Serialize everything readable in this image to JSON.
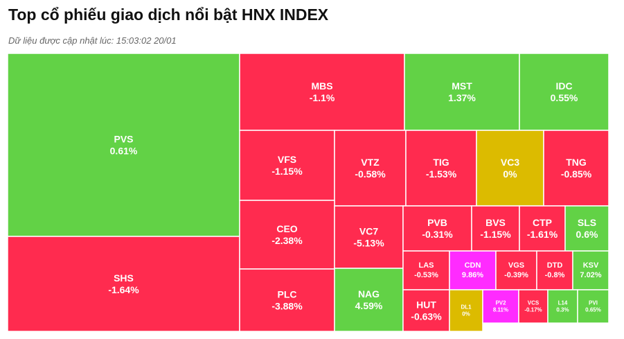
{
  "header": {
    "title": "Top cổ phiếu giao dịch nổi bật HNX INDEX",
    "updated": "Dữ liệu được cập nhật lúc: 15:03:02 20/01"
  },
  "colors": {
    "up": "#62d246",
    "down": "#ff2b4f",
    "flat": "#dcbb00",
    "ceiling": "#ff2bff",
    "border": "#ffffff",
    "label": "#ffffff"
  },
  "chart_data": {
    "type": "treemap",
    "title": "Top cổ phiếu giao dịch nổi bật HNX INDEX",
    "items": [
      {
        "symbol": "PVS",
        "change": "0.61%",
        "value": 0.61,
        "status": "up"
      },
      {
        "symbol": "SHS",
        "change": "-1.64%",
        "value": -1.64,
        "status": "down"
      },
      {
        "symbol": "MBS",
        "change": "-1.1%",
        "value": -1.1,
        "status": "down"
      },
      {
        "symbol": "MST",
        "change": "1.37%",
        "value": 1.37,
        "status": "up"
      },
      {
        "symbol": "IDC",
        "change": "0.55%",
        "value": 0.55,
        "status": "up"
      },
      {
        "symbol": "VFS",
        "change": "-1.15%",
        "value": -1.15,
        "status": "down"
      },
      {
        "symbol": "VTZ",
        "change": "-0.58%",
        "value": -0.58,
        "status": "down"
      },
      {
        "symbol": "TIG",
        "change": "-1.53%",
        "value": -1.53,
        "status": "down"
      },
      {
        "symbol": "VC3",
        "change": "0%",
        "value": 0,
        "status": "flat"
      },
      {
        "symbol": "TNG",
        "change": "-0.85%",
        "value": -0.85,
        "status": "down"
      },
      {
        "symbol": "CEO",
        "change": "-2.38%",
        "value": -2.38,
        "status": "down"
      },
      {
        "symbol": "VC7",
        "change": "-5.13%",
        "value": -5.13,
        "status": "down"
      },
      {
        "symbol": "PVB",
        "change": "-0.31%",
        "value": -0.31,
        "status": "down"
      },
      {
        "symbol": "BVS",
        "change": "-1.15%",
        "value": -1.15,
        "status": "down"
      },
      {
        "symbol": "CTP",
        "change": "-1.61%",
        "value": -1.61,
        "status": "down"
      },
      {
        "symbol": "SLS",
        "change": "0.6%",
        "value": 0.6,
        "status": "up"
      },
      {
        "symbol": "PLC",
        "change": "-3.88%",
        "value": -3.88,
        "status": "down"
      },
      {
        "symbol": "NAG",
        "change": "4.59%",
        "value": 4.59,
        "status": "up"
      },
      {
        "symbol": "LAS",
        "change": "-0.53%",
        "value": -0.53,
        "status": "down"
      },
      {
        "symbol": "CDN",
        "change": "9.86%",
        "value": 9.86,
        "status": "ceiling"
      },
      {
        "symbol": "VGS",
        "change": "-0.39%",
        "value": -0.39,
        "status": "down"
      },
      {
        "symbol": "DTD",
        "change": "-0.8%",
        "value": -0.8,
        "status": "down"
      },
      {
        "symbol": "KSV",
        "change": "7.02%",
        "value": 7.02,
        "status": "up"
      },
      {
        "symbol": "HUT",
        "change": "-0.63%",
        "value": -0.63,
        "status": "down"
      },
      {
        "symbol": "DL1",
        "change": "0%",
        "value": 0,
        "status": "flat"
      },
      {
        "symbol": "PV2",
        "change": "8.11%",
        "value": 8.11,
        "status": "ceiling"
      },
      {
        "symbol": "VCS",
        "change": "-0.17%",
        "value": -0.17,
        "status": "down"
      },
      {
        "symbol": "L14",
        "change": "0.3%",
        "value": 0.3,
        "status": "up"
      },
      {
        "symbol": "PVI",
        "change": "0.65%",
        "value": 0.65,
        "status": "up"
      }
    ]
  }
}
